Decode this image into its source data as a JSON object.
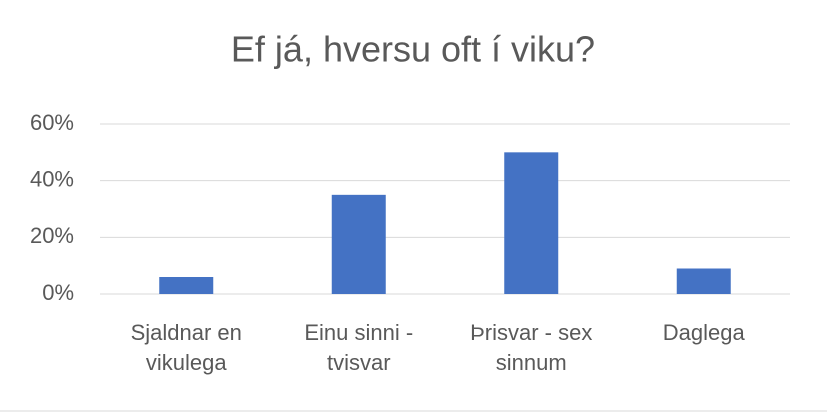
{
  "chart_data": {
    "type": "bar",
    "title": "Ef já, hversu oft í viku?",
    "categories": [
      "Sjaldnar en vikulega",
      "Einu sinni - tvisvar",
      "Þrisvar - sex sinnum",
      "Daglega"
    ],
    "values": [
      6,
      35,
      50,
      9
    ],
    "color": "#4472c4",
    "ylim": [
      0,
      60
    ],
    "yticks": [
      {
        "value": 0,
        "label": "0%"
      },
      {
        "value": 20,
        "label": "20%"
      },
      {
        "value": 40,
        "label": "40%"
      },
      {
        "value": 60,
        "label": "60%"
      }
    ],
    "grid": true
  }
}
